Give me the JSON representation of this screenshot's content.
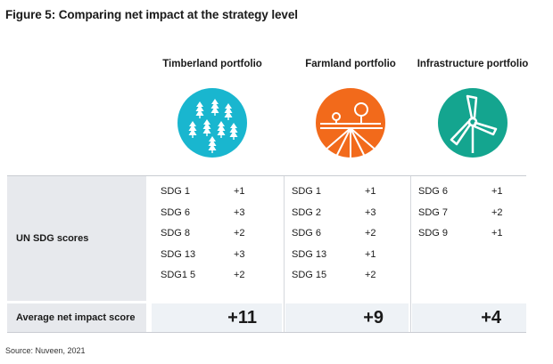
{
  "title": "Figure 5: Comparing net impact at the strategy level",
  "columns": [
    {
      "header": "Timberland portfolio",
      "icon": "trees-icon",
      "color": "#19b6cf",
      "sdgs": [
        {
          "name": "SDG 1",
          "score": "+1"
        },
        {
          "name": "SDG 6",
          "score": "+3"
        },
        {
          "name": "SDG 8",
          "score": "+2"
        },
        {
          "name": "SDG 13",
          "score": "+3"
        },
        {
          "name": "SDG1 5",
          "score": "+2"
        }
      ],
      "average": "+11"
    },
    {
      "header": "Farmland portfolio",
      "icon": "farm-field-icon",
      "color": "#f26a1b",
      "sdgs": [
        {
          "name": "SDG 1",
          "score": "+1"
        },
        {
          "name": "SDG 2",
          "score": "+3"
        },
        {
          "name": "SDG 6",
          "score": "+2"
        },
        {
          "name": "SDG 13",
          "score": "+1"
        },
        {
          "name": "SDG 15",
          "score": "+2"
        }
      ],
      "average": "+9"
    },
    {
      "header": "Infrastructure portfolio",
      "icon": "wind-turbine-icon",
      "color": "#14a58f",
      "sdgs": [
        {
          "name": "SDG 6",
          "score": "+1"
        },
        {
          "name": "SDG 7",
          "score": "+2"
        },
        {
          "name": "SDG 9",
          "score": "+1"
        }
      ],
      "average": "+4"
    }
  ],
  "rows": {
    "sdg_label": "UN SDG scores",
    "avg_label": "Average net impact score"
  },
  "source": "Source: Nuveen, 2021"
}
